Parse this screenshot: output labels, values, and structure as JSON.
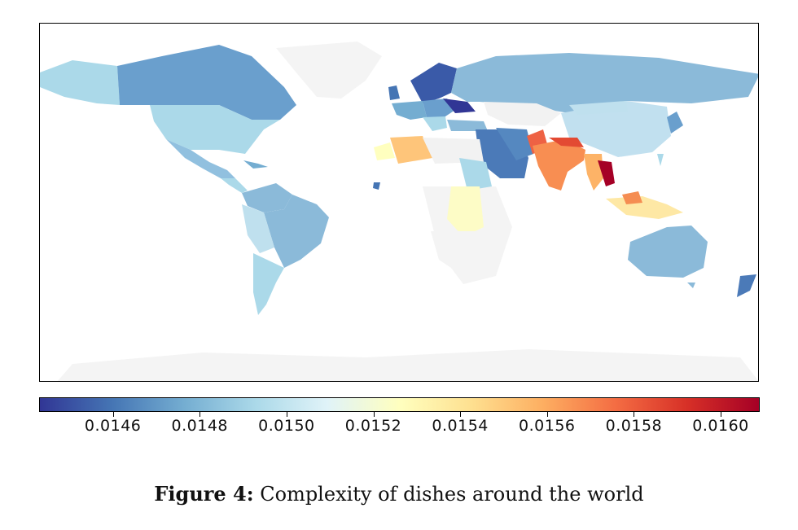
{
  "colors": {
    "scale": [
      "#313695",
      "#4575b4",
      "#74add1",
      "#abd9e9",
      "#e0f3f8",
      "#ffffbf",
      "#fee090",
      "#fdae61",
      "#f46d43",
      "#d73027",
      "#a50026"
    ],
    "no_data": "#f4f4f4"
  },
  "colorbar": {
    "min": 0.01443,
    "max": 0.01609,
    "ticks": [
      "0.0146",
      "0.0148",
      "0.0150",
      "0.0152",
      "0.0154",
      "0.0156",
      "0.0158",
      "0.0160"
    ]
  },
  "caption": {
    "label": "Figure 4:",
    "text": "Complexity of dishes around the world"
  }
}
